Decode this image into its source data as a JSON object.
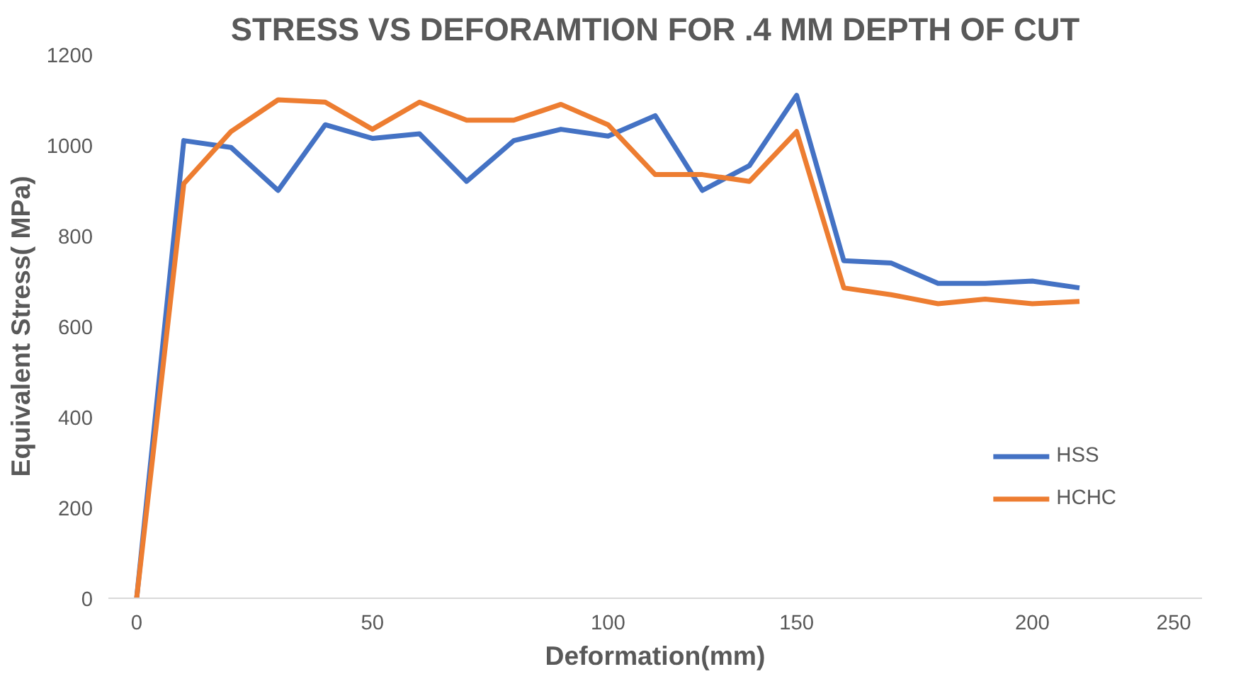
{
  "chart_data": {
    "type": "line",
    "title": "STRESS VS DEFORAMTION FOR .4 MM DEPTH OF CUT",
    "xlabel": "Deformation(mm)",
    "ylabel": "Equivalent Stress( MPa)",
    "categories": [
      "0",
      null,
      null,
      null,
      null,
      "50",
      null,
      null,
      null,
      null,
      "100",
      null,
      null,
      null,
      "150",
      null,
      null,
      null,
      null,
      "200",
      null,
      null,
      "250"
    ],
    "series": [
      {
        "name": "HSS",
        "color": "#4472c4",
        "values": [
          0,
          1010,
          995,
          900,
          1045,
          1015,
          1025,
          920,
          1010,
          1035,
          1020,
          1065,
          900,
          955,
          1110,
          745,
          740,
          695,
          695,
          700,
          685,
          null,
          null
        ]
      },
      {
        "name": "HCHC",
        "color": "#ed7d31",
        "values": [
          0,
          915,
          1030,
          1100,
          1095,
          1035,
          1095,
          1055,
          1055,
          1090,
          1045,
          935,
          935,
          920,
          1030,
          685,
          670,
          650,
          660,
          650,
          655,
          null,
          null
        ]
      }
    ],
    "ylim": [
      0,
      1200
    ],
    "yticks": [
      0,
      200,
      400,
      600,
      800,
      1000,
      1200
    ],
    "grid": false,
    "legend": "bottom right",
    "line_style": "solid",
    "marker": "none"
  }
}
